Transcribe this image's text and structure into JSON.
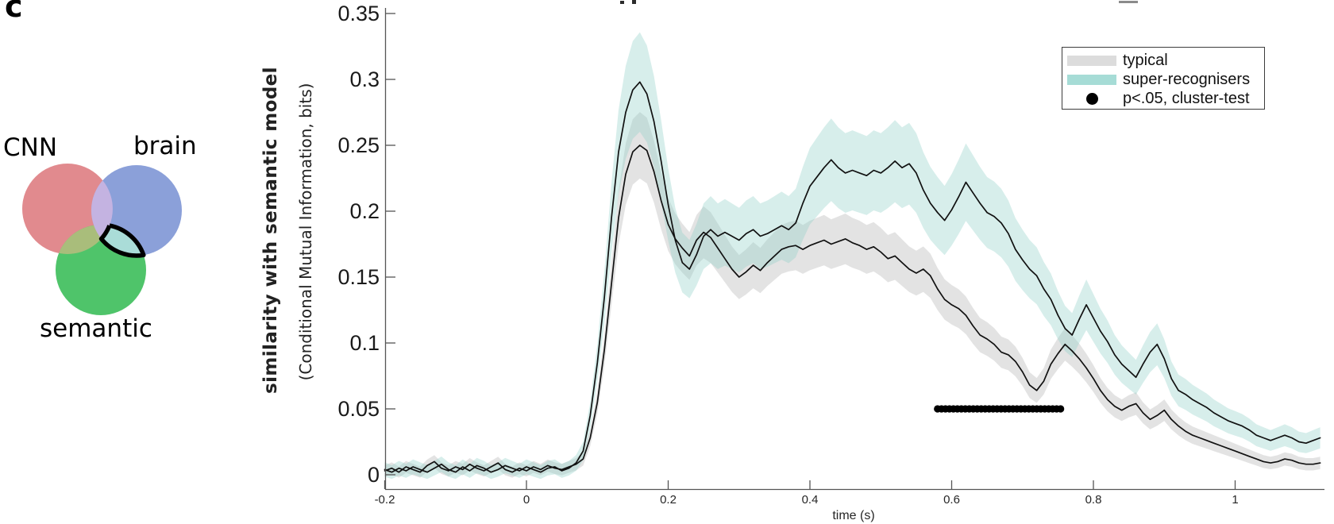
{
  "panel_label": "c",
  "venn": {
    "labels": {
      "cnn": "CNN",
      "brain": "brain",
      "semantic": "semantic"
    },
    "highlight_region": "brain-semantic overlap excluding CNN",
    "colors": {
      "cnn": "#e18a8e",
      "brain": "#8ba0d9",
      "semantic": "#4fc46a",
      "overlap_cnn_brain": "#c4b3e1",
      "overlap_cnn_semantic": "#a9bd7b",
      "highlight_fill": "#aadcd8",
      "highlight_outline": "#000000"
    }
  },
  "chart_data": {
    "type": "line",
    "title": "",
    "xlabel": "time (s)",
    "ylabel_bold": "similarity with semantic model",
    "ylabel_sub": "(Conditional Mutual Information, bits)",
    "xlim": [
      -0.2,
      1.12
    ],
    "ylim": [
      0,
      0.35
    ],
    "grid": false,
    "xticks": {
      "values": [
        -0.2,
        0,
        0.2,
        0.4,
        0.6,
        0.8,
        1
      ],
      "labels": [
        "-0.2",
        "0",
        "0.2",
        "0.4",
        "0.6",
        "0.8",
        "1"
      ]
    },
    "yticks": {
      "values": [
        0,
        0.05,
        0.1,
        0.15,
        0.2,
        0.25,
        0.3,
        0.35
      ],
      "labels": [
        "0",
        "0.05",
        "0.1",
        "0.15",
        "0.2",
        "0.25",
        "0.3",
        "0.35"
      ]
    },
    "x_start": -0.2,
    "x_step": 0.01,
    "series": [
      {
        "name": "typical",
        "line_color": "#111111",
        "band_color": "rgba(175,175,175,0.35)",
        "band": {
          "base": 0.004,
          "scale": 0.085
        },
        "values": [
          0.003,
          0.005,
          0.002,
          0.006,
          0.004,
          0.002,
          0.007,
          0.01,
          0.005,
          0.003,
          0.006,
          0.004,
          0.008,
          0.005,
          0.003,
          0.006,
          0.009,
          0.004,
          0.002,
          0.005,
          0.003,
          0.006,
          0.004,
          0.007,
          0.005,
          0.004,
          0.006,
          0.008,
          0.012,
          0.028,
          0.055,
          0.095,
          0.145,
          0.195,
          0.228,
          0.245,
          0.25,
          0.246,
          0.23,
          0.208,
          0.19,
          0.179,
          0.172,
          0.166,
          0.178,
          0.184,
          0.18,
          0.172,
          0.164,
          0.156,
          0.15,
          0.154,
          0.159,
          0.155,
          0.161,
          0.166,
          0.171,
          0.173,
          0.174,
          0.171,
          0.174,
          0.176,
          0.178,
          0.175,
          0.177,
          0.179,
          0.176,
          0.174,
          0.171,
          0.173,
          0.169,
          0.164,
          0.166,
          0.161,
          0.156,
          0.153,
          0.156,
          0.151,
          0.141,
          0.133,
          0.129,
          0.126,
          0.121,
          0.113,
          0.106,
          0.103,
          0.099,
          0.093,
          0.091,
          0.086,
          0.078,
          0.068,
          0.064,
          0.071,
          0.084,
          0.092,
          0.099,
          0.094,
          0.088,
          0.081,
          0.073,
          0.064,
          0.057,
          0.052,
          0.049,
          0.052,
          0.054,
          0.047,
          0.042,
          0.045,
          0.049,
          0.042,
          0.037,
          0.033,
          0.03,
          0.028,
          0.026,
          0.024,
          0.022,
          0.02,
          0.018,
          0.016,
          0.014,
          0.012,
          0.01,
          0.009,
          0.01,
          0.012,
          0.011,
          0.009,
          0.008,
          0.008,
          0.009
        ]
      },
      {
        "name": "super-recognisers",
        "line_color": "#111111",
        "band_color": "rgba(141,205,199,0.35)",
        "band": {
          "base": 0.005,
          "scale": 0.11
        },
        "values": [
          0.004,
          0.002,
          0.005,
          0.003,
          0.006,
          0.004,
          0.002,
          0.005,
          0.008,
          0.004,
          0.002,
          0.006,
          0.003,
          0.007,
          0.005,
          0.002,
          0.004,
          0.007,
          0.005,
          0.003,
          0.006,
          0.004,
          0.002,
          0.005,
          0.006,
          0.003,
          0.005,
          0.009,
          0.018,
          0.045,
          0.085,
          0.135,
          0.195,
          0.245,
          0.275,
          0.292,
          0.298,
          0.289,
          0.268,
          0.238,
          0.205,
          0.178,
          0.161,
          0.156,
          0.167,
          0.181,
          0.186,
          0.181,
          0.184,
          0.181,
          0.178,
          0.183,
          0.186,
          0.181,
          0.183,
          0.186,
          0.189,
          0.186,
          0.191,
          0.206,
          0.219,
          0.226,
          0.233,
          0.239,
          0.233,
          0.229,
          0.231,
          0.229,
          0.227,
          0.231,
          0.229,
          0.233,
          0.238,
          0.233,
          0.236,
          0.229,
          0.216,
          0.206,
          0.199,
          0.193,
          0.201,
          0.211,
          0.222,
          0.214,
          0.206,
          0.199,
          0.196,
          0.191,
          0.183,
          0.171,
          0.163,
          0.156,
          0.151,
          0.141,
          0.133,
          0.121,
          0.111,
          0.106,
          0.118,
          0.129,
          0.119,
          0.109,
          0.101,
          0.091,
          0.084,
          0.079,
          0.074,
          0.084,
          0.093,
          0.099,
          0.088,
          0.073,
          0.064,
          0.061,
          0.057,
          0.054,
          0.051,
          0.047,
          0.044,
          0.041,
          0.039,
          0.037,
          0.034,
          0.03,
          0.028,
          0.026,
          0.028,
          0.03,
          0.028,
          0.025,
          0.024,
          0.026,
          0.028
        ]
      }
    ],
    "significance": {
      "label": "p<.05, cluster-test",
      "y": 0.05,
      "x_start": 0.58,
      "x_end": 0.755,
      "marker": "filled-circle",
      "color": "#000000"
    },
    "legend": {
      "position": "top-right",
      "entries": [
        {
          "label": "typical",
          "swatch": "#dcdcdc",
          "type": "band"
        },
        {
          "label": "super-recognisers",
          "swatch": "#a6dcd6",
          "type": "band"
        },
        {
          "label": "p<.05, cluster-test",
          "swatch": "#000000",
          "type": "dot"
        }
      ]
    }
  }
}
